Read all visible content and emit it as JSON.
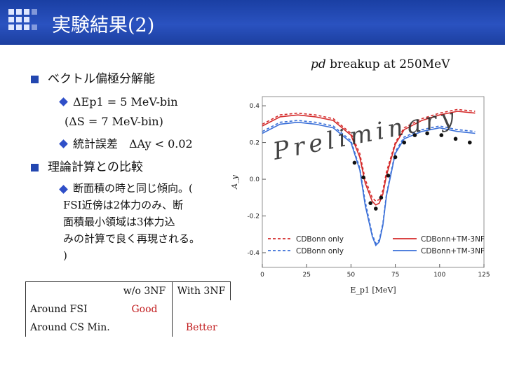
{
  "header": {
    "title": "実験結果(2)"
  },
  "figure_title": {
    "pd": "pd",
    "rest": " breakup at 250MeV"
  },
  "bullets": {
    "b1": "ベクトル偏極分解能",
    "b1_sub1": "ΔEp1 = 5 MeV-bin",
    "b1_sub1_paren": "(ΔS = 7 MeV-bin)",
    "b1_sub2": "統計誤差　ΔAy < 0.02",
    "b2": "理論計算との比較",
    "b2_sub_lines": [
      "断面積の時と同じ傾向。(",
      "FSI近傍は2体力のみ、断",
      "面積最小領域は3体力込",
      "みの計算で良く再現される。",
      ")"
    ]
  },
  "table": {
    "headers": [
      "",
      "w/o 3NF",
      "With 3NF"
    ],
    "rows": [
      [
        "Around FSI",
        "Good",
        ""
      ],
      [
        "Around CS Min.",
        "",
        "Better"
      ]
    ]
  },
  "chart_data": {
    "type": "line",
    "watermark": "Preliminary",
    "xlabel": "E_p1 [MeV]",
    "ylabel": "A_y",
    "xlim": [
      0,
      125
    ],
    "ylim": [
      -0.48,
      0.45
    ],
    "xticks": [
      0,
      25,
      50,
      75,
      100,
      125
    ],
    "yticks": [
      -0.4,
      -0.2,
      0.0,
      0.2,
      0.4
    ],
    "legend": {
      "placement": "bottom"
    },
    "series": [
      {
        "name": "CDBonn only",
        "color": "#d42a2a",
        "dash": true,
        "x": [
          0,
          10,
          20,
          30,
          40,
          50,
          55,
          58,
          62,
          64,
          66,
          68,
          70,
          75,
          80,
          90,
          100,
          110,
          120
        ],
        "y": [
          0.3,
          0.35,
          0.36,
          0.35,
          0.33,
          0.25,
          0.14,
          0.0,
          -0.1,
          -0.12,
          -0.11,
          -0.06,
          0.04,
          0.2,
          0.28,
          0.33,
          0.36,
          0.38,
          0.37
        ]
      },
      {
        "name": "CDBonn+TM-3NF",
        "color": "#d42a2a",
        "dash": false,
        "x": [
          0,
          10,
          20,
          30,
          40,
          50,
          55,
          58,
          62,
          64,
          66,
          68,
          70,
          75,
          80,
          90,
          100,
          110,
          120
        ],
        "y": [
          0.29,
          0.34,
          0.35,
          0.34,
          0.32,
          0.24,
          0.12,
          -0.02,
          -0.12,
          -0.14,
          -0.13,
          -0.08,
          0.02,
          0.19,
          0.27,
          0.32,
          0.35,
          0.37,
          0.36
        ]
      },
      {
        "name": "CDBonn only",
        "color": "#3a6fd8",
        "dash": true,
        "x": [
          0,
          10,
          20,
          30,
          40,
          50,
          55,
          58,
          62,
          64,
          66,
          68,
          70,
          75,
          80,
          90,
          100,
          110,
          120
        ],
        "y": [
          0.26,
          0.31,
          0.32,
          0.31,
          0.29,
          0.21,
          0.06,
          -0.12,
          -0.3,
          -0.35,
          -0.33,
          -0.24,
          -0.08,
          0.15,
          0.23,
          0.27,
          0.29,
          0.27,
          0.26
        ]
      },
      {
        "name": "CDBonn+TM-3NF",
        "color": "#3a6fd8",
        "dash": false,
        "x": [
          0,
          10,
          20,
          30,
          40,
          50,
          55,
          58,
          62,
          64,
          66,
          68,
          70,
          75,
          80,
          90,
          100,
          110,
          120
        ],
        "y": [
          0.25,
          0.3,
          0.31,
          0.3,
          0.28,
          0.2,
          0.05,
          -0.14,
          -0.31,
          -0.36,
          -0.34,
          -0.25,
          -0.09,
          0.14,
          0.22,
          0.26,
          0.28,
          0.26,
          0.25
        ]
      }
    ],
    "data_points": {
      "x": [
        52,
        57,
        61,
        64,
        67,
        71,
        75,
        80,
        86,
        93,
        101,
        109,
        117
      ],
      "y": [
        0.09,
        0.01,
        -0.13,
        -0.16,
        -0.1,
        0.02,
        0.12,
        0.2,
        0.24,
        0.25,
        0.24,
        0.22,
        0.2
      ]
    }
  }
}
